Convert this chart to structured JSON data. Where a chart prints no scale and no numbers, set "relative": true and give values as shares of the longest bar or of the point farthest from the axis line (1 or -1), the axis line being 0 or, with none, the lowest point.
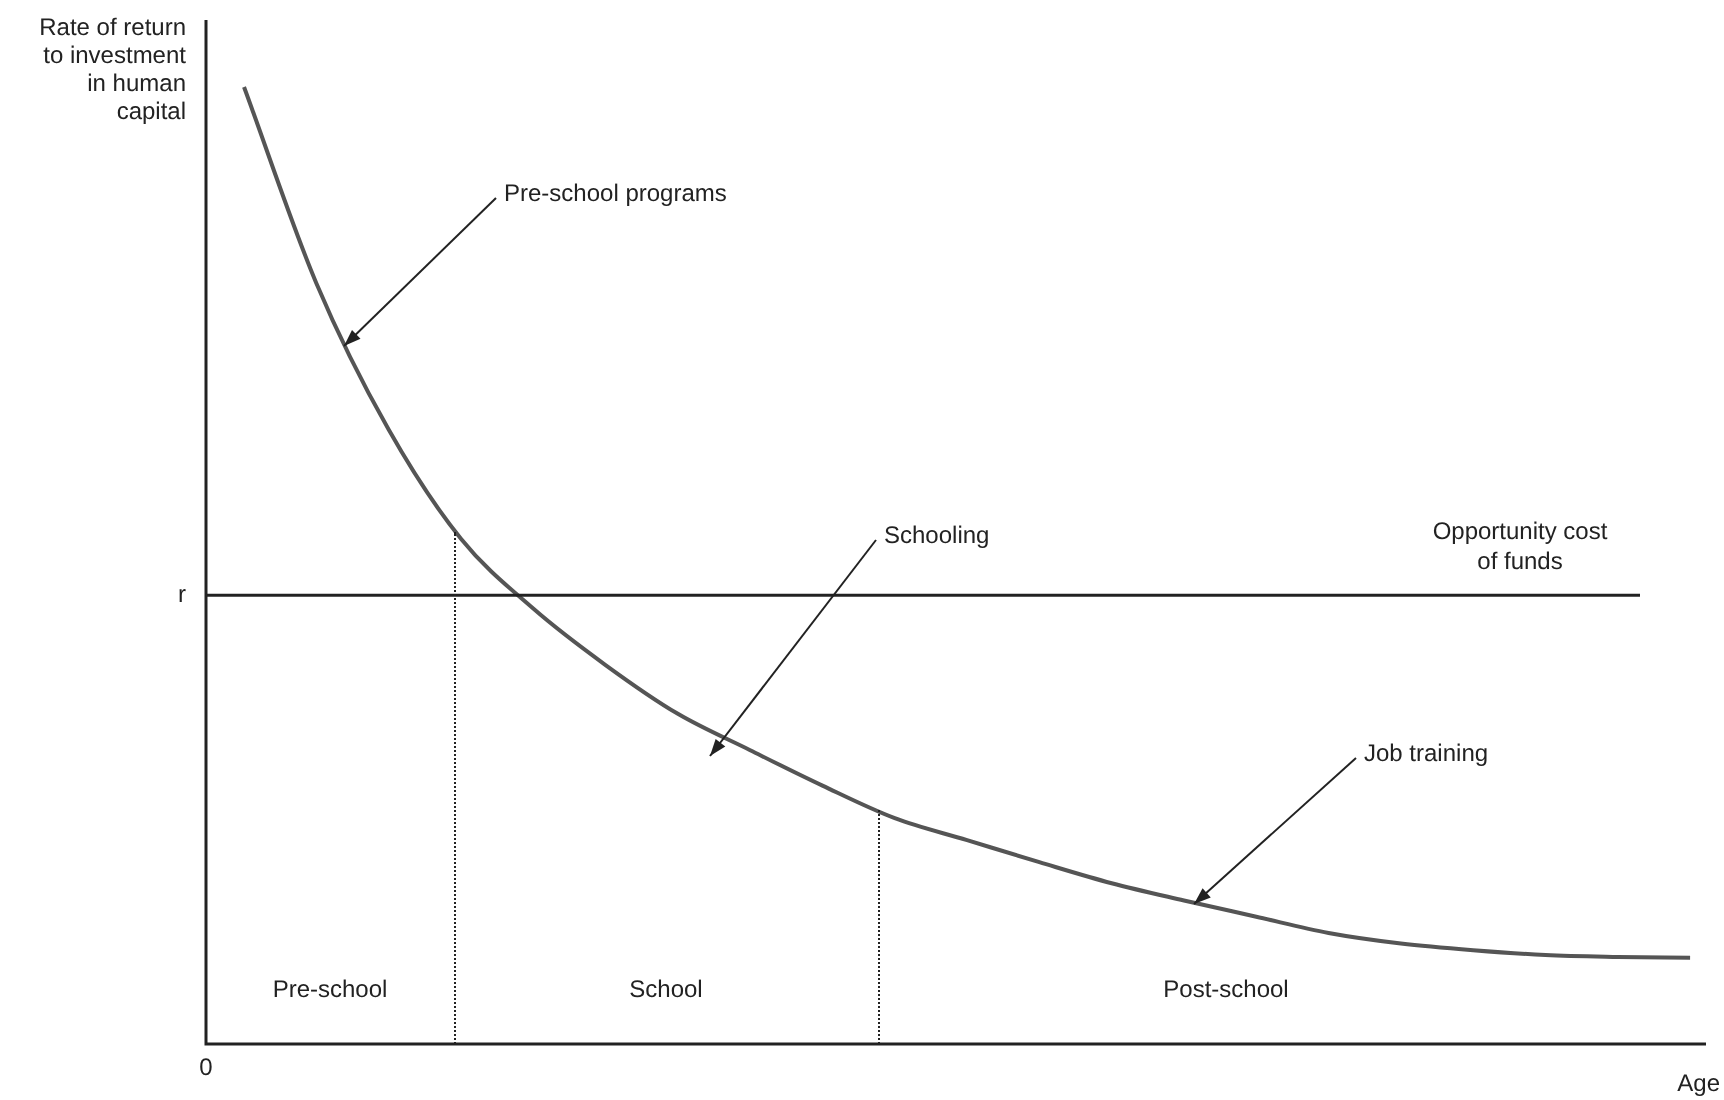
{
  "chart_data": {
    "type": "line",
    "relative": true,
    "ylabel": "Rate of return to investment in human capital",
    "xlabel": "Age",
    "grid": false,
    "legend": false,
    "marker": "none",
    "line_style": "solid",
    "categories": [
      null,
      null,
      null,
      null,
      null,
      null,
      null,
      null,
      null,
      null,
      null,
      null,
      null,
      null,
      null,
      null,
      null,
      null,
      null,
      null,
      null
    ],
    "series": [
      {
        "color": "#555555",
        "values": [
          1,
          0.795,
          0.642,
          0.528,
          0.455,
          0.396,
          0.345,
          0.307,
          0.27,
          0.236,
          0.213,
          0.19,
          0.168,
          0.15,
          0.133,
          0.116,
          0.105,
          0.098,
          0.093,
          0.091,
          0.09
        ]
      }
    ],
    "ref_lines": [
      {
        "axis": "y",
        "value": 0.469,
        "label": "r",
        "color": "#222222",
        "line_style": "solid"
      }
    ],
    "annotations": [
      "Pre-school programs",
      "Schooling",
      "Job training",
      "Opportunity cost of funds",
      "Pre-school",
      "School",
      "Post-school",
      "0"
    ]
  }
}
